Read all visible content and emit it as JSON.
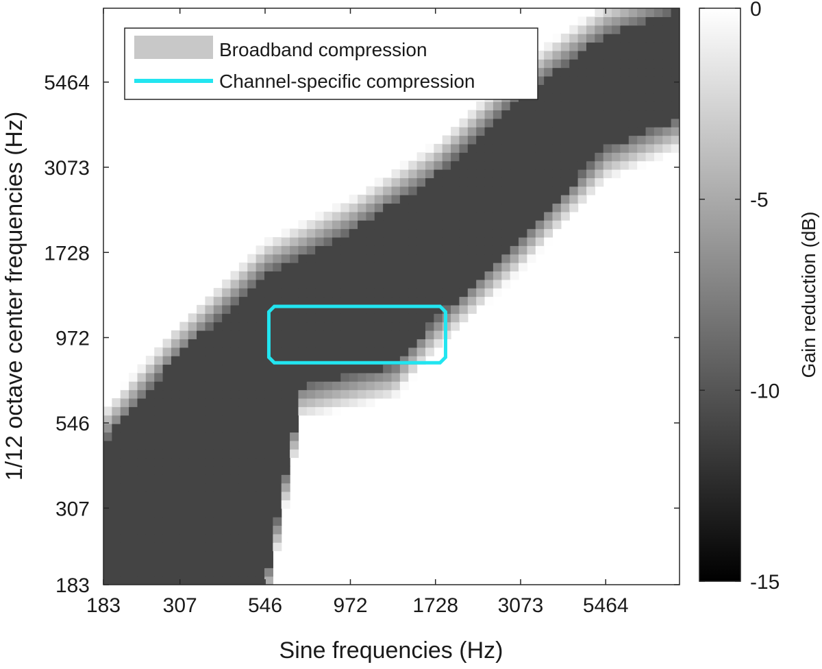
{
  "chart_data": {
    "type": "heatmap",
    "xlabel": "Sine frequencies (Hz)",
    "ylabel": "1/12 octave center frequencies (Hz)",
    "x_ticks": [
      "183",
      "307",
      "546",
      "972",
      "1728",
      "3073",
      "5464"
    ],
    "y_ticks": [
      "183",
      "307",
      "546",
      "972",
      "1728",
      "3073",
      "5464"
    ],
    "x_scale": "log",
    "y_scale": "log",
    "x_range_hz": [
      183,
      9000
    ],
    "y_range_hz": [
      183,
      9000
    ],
    "colorbar": {
      "label": "Gain reduction (dB)",
      "ticks": [
        "0",
        "-5",
        "-10",
        "-15"
      ],
      "range": [
        -15,
        0
      ],
      "colormap": "gray"
    },
    "legend": {
      "position": "top-left",
      "entries": [
        {
          "label": "Broadband compression",
          "kind": "patch",
          "color": "#c8c8c8"
        },
        {
          "label": "Channel-specific compression",
          "kind": "line",
          "color": "#22e5f0"
        }
      ]
    },
    "broadband_band": {
      "description_value_db": -11,
      "lower_edge": [
        [
          183,
          183
        ],
        [
          546,
          183
        ],
        [
          700,
          700
        ],
        [
          1300,
          800
        ],
        [
          1728,
          1100
        ],
        [
          3073,
          1900
        ],
        [
          5464,
          3500
        ],
        [
          9000,
          4300
        ]
      ],
      "upper_edge": [
        [
          183,
          480
        ],
        [
          300,
          850
        ],
        [
          546,
          1500
        ],
        [
          972,
          2000
        ],
        [
          1728,
          2900
        ],
        [
          3073,
          5000
        ],
        [
          5464,
          7500
        ],
        [
          9000,
          9000
        ]
      ]
    },
    "channel_specific_region_hz": {
      "x": [
        560,
        1850
      ],
      "y": [
        820,
        1200
      ]
    },
    "grid": false
  }
}
